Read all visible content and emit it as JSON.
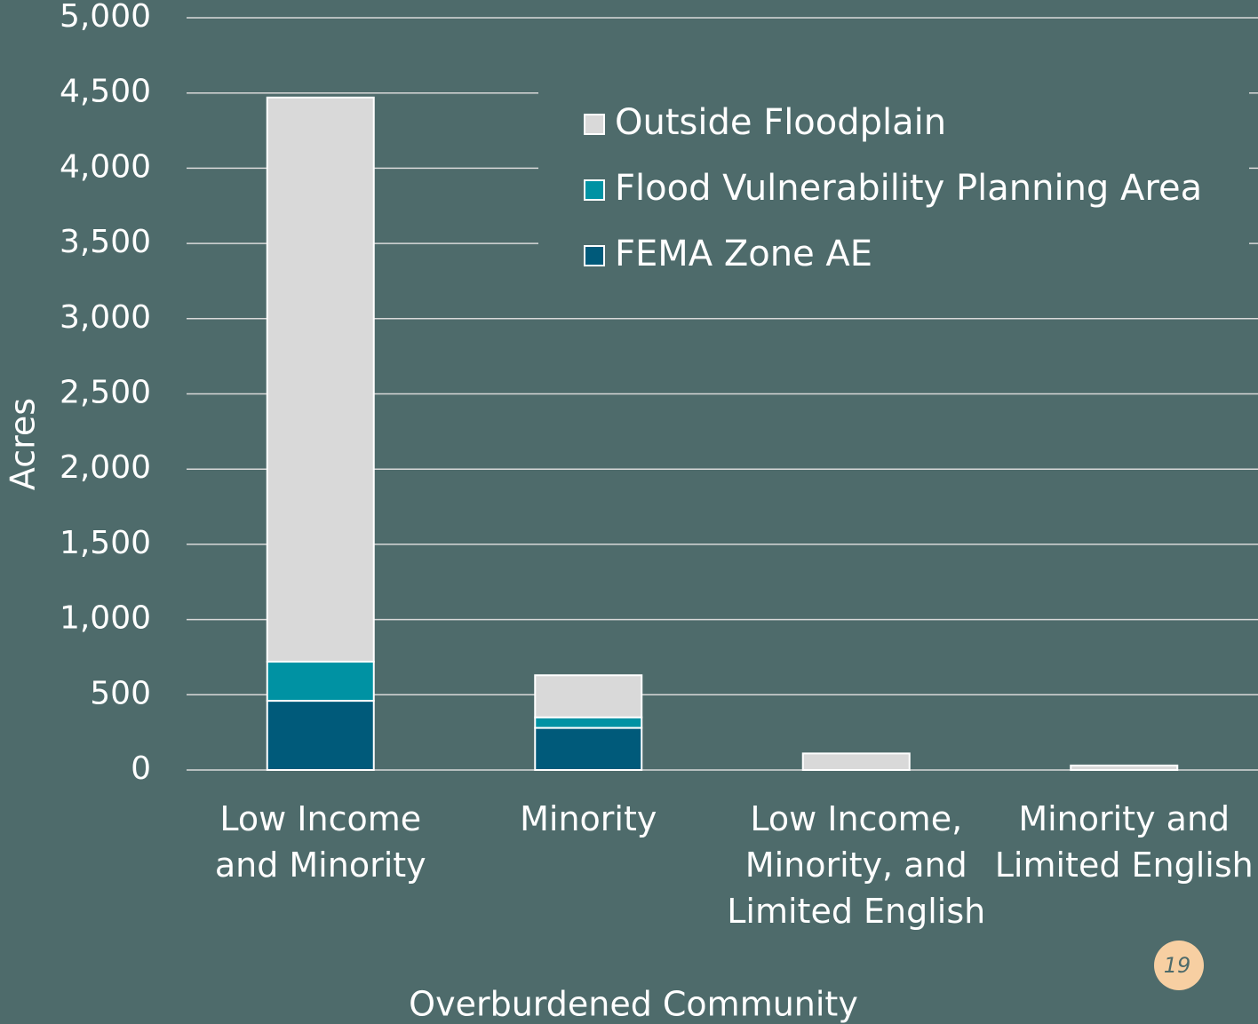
{
  "chart_data": {
    "type": "stacked_bar",
    "x_label": "Overburdened Community",
    "y_label": "Acres",
    "categories": [
      "Low Income\nand Minority",
      "Minority",
      "Low Income,\nMinority, and\nLimited English",
      "Minority and\nLimited English"
    ],
    "series": [
      {
        "name": "FEMA Zone AE",
        "color": "#005a7a",
        "values": [
          460,
          280,
          0,
          0
        ]
      },
      {
        "name": "Flood Vulnerability Planning Area",
        "color": "#0092a3",
        "values": [
          260,
          70,
          0,
          0
        ]
      },
      {
        "name": "Outside Floodplain",
        "color": "#d9d9d9",
        "values": [
          3750,
          280,
          110,
          30
        ]
      }
    ],
    "ylim": [
      0,
      5000
    ],
    "yticks": [
      0,
      500,
      {
        "value": 1000,
        "label": "1,000"
      },
      {
        "value": 1500,
        "label": "1,500"
      },
      {
        "value": 2000,
        "label": "2,000"
      },
      {
        "value": 2500,
        "label": "2,500"
      },
      {
        "value": 3000,
        "label": "3,000"
      },
      {
        "value": 3500,
        "label": "3,500"
      },
      {
        "value": 4000,
        "label": "4,000"
      },
      {
        "value": 4500,
        "label": "4,500"
      },
      {
        "value": 5000,
        "label": "5,000"
      }
    ],
    "grid": true,
    "legend": "top-right",
    "page_number": "19"
  }
}
